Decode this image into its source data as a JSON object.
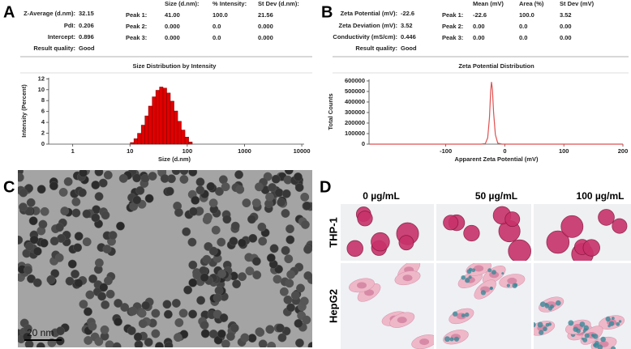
{
  "labels": {
    "a": "A",
    "b": "B",
    "c": "C",
    "d": "D"
  },
  "size_table": {
    "summary": [
      [
        "Z-Average (d.nm):",
        "32.15"
      ],
      [
        "PdI:",
        "0.206"
      ],
      [
        "Intercept:",
        "0.896"
      ],
      [
        "Result quality:",
        "Good"
      ]
    ],
    "header": [
      "Size (d.nm):",
      "% Intensity:",
      "St Dev (d.nm):"
    ],
    "rows": [
      [
        "Peak 1:",
        "41.00",
        "100.0",
        "21.56"
      ],
      [
        "Peak 2:",
        "0.000",
        "0.0",
        "0.000"
      ],
      [
        "Peak 3:",
        "0.000",
        "0.0",
        "0.000"
      ]
    ]
  },
  "zeta_table": {
    "summary": [
      [
        "Zeta Potential (mV):",
        "-22.6"
      ],
      [
        "Zeta Deviation (mV):",
        "3.52"
      ],
      [
        "Conductivity (mS/cm):",
        "0.446"
      ],
      [
        "Result quality:",
        "Good"
      ]
    ],
    "header": [
      "Mean (mV)",
      "Area (%)",
      "St Dev (mV)"
    ],
    "rows": [
      [
        "Peak 1:",
        "-22.6",
        "100.0",
        "3.52"
      ],
      [
        "Peak 2:",
        "0.00",
        "0.0",
        "0.00"
      ],
      [
        "Peak 3:",
        "0.00",
        "0.0",
        "0.00"
      ]
    ]
  },
  "chart_data": [
    {
      "type": "histogram",
      "title": "Size Distribution by Intensity",
      "x_label": "Size (d.nm)",
      "y_label": "Intensity (Percent)",
      "bins": [
        10.1,
        11.7,
        13.5,
        15.7,
        18.2,
        21.0,
        24.4,
        28.2,
        32.7,
        37.8,
        43.8,
        50.7,
        58.8,
        68.1,
        78.8,
        91.3,
        106,
        122.4
      ],
      "counts": [
        0.3,
        1.0,
        2.0,
        3.5,
        5.2,
        7.0,
        8.7,
        9.9,
        10.5,
        10.3,
        9.4,
        7.9,
        6.1,
        4.2,
        2.6,
        1.3,
        0.4
      ],
      "color": "#e00000",
      "xscale": "log",
      "xlim": [
        0.38,
        11000
      ],
      "xticks": [
        1,
        10,
        100,
        1000,
        10000
      ],
      "ylim": [
        0,
        12.2
      ],
      "yticks": [
        0,
        2,
        4,
        6,
        8,
        10,
        12
      ]
    },
    {
      "type": "line",
      "title": "Zeta Potential Distribution",
      "x_label": "Apparent Zeta  Potential (mV)",
      "y_label": "Total Counts",
      "x": [
        -230,
        -40,
        -33,
        -29,
        -26,
        -24,
        -22.6,
        -21,
        -19,
        -16,
        -12,
        -5,
        200
      ],
      "values": [
        0,
        0,
        5000,
        60000,
        250000,
        500000,
        590000,
        520000,
        300000,
        90000,
        10000,
        0,
        0
      ],
      "color": "#e05050",
      "xlim": [
        -230,
        200
      ],
      "xticks": [
        -100,
        0,
        100,
        200
      ],
      "ylim": [
        0,
        615000
      ],
      "yticks": [
        0,
        100000,
        200000,
        300000,
        400000,
        500000,
        600000
      ]
    }
  ],
  "tem": {
    "scale_bar": "20 nm"
  },
  "cells": {
    "columns": [
      "0 µg/mL",
      "50 µg/mL",
      "100 µg/mL"
    ],
    "rows": [
      "THP-1",
      "HepG2"
    ]
  }
}
